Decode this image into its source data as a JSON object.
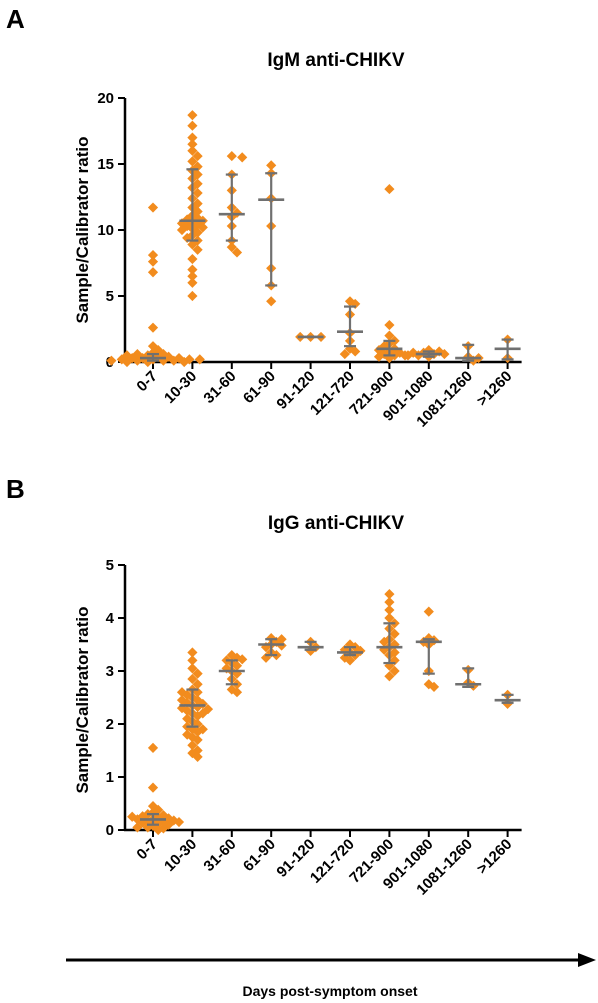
{
  "figure": {
    "x_axis_label": "Days post-symptom onset"
  },
  "chart_data": [
    {
      "panel": "A",
      "type": "scatter",
      "title": "IgM anti-CHIKV",
      "ylabel": "Sample/Calibrator ratio",
      "ylim": [
        0,
        20
      ],
      "yticks": [
        0,
        5,
        10,
        15,
        20
      ],
      "grid": false,
      "color": "#f28c1e",
      "categories": [
        "0-7",
        "10-30",
        "31-60",
        "61-90",
        "91-120",
        "121-720",
        "721-900",
        "901-1080",
        "1081-1260",
        ">1260"
      ],
      "groups": [
        {
          "median": 0.3,
          "q1": 0.1,
          "q3": 0.6,
          "points": [
            11.7,
            8.1,
            7.6,
            6.8,
            2.6,
            1.2,
            0.9,
            0.7,
            0.6,
            0.5,
            0.4,
            0.4,
            0.3,
            0.3,
            0.3,
            0.2,
            0.2,
            0.2,
            0.1,
            0.1,
            0.1,
            0.1,
            0.0,
            0.0,
            0.6,
            0.5,
            0.2,
            0.0
          ]
        },
        {
          "median": 10.7,
          "q1": 9.2,
          "q3": 14.6,
          "points": [
            18.7,
            17.9,
            17.0,
            16.5,
            16.0,
            15.6,
            15.2,
            14.8,
            14.5,
            14.2,
            13.9,
            13.5,
            13.2,
            12.8,
            12.4,
            12.0,
            11.7,
            11.4,
            11.1,
            10.9,
            10.8,
            10.7,
            10.6,
            10.5,
            10.4,
            10.3,
            10.2,
            10.1,
            10.0,
            9.8,
            9.6,
            9.4,
            9.2,
            8.9,
            8.5,
            7.8,
            7.0,
            6.5,
            6.0,
            5.0
          ]
        },
        {
          "median": 11.2,
          "q1": 9.2,
          "q3": 14.2,
          "points": [
            15.6,
            15.5,
            14.2,
            13.0,
            11.7,
            11.3,
            11.0,
            10.3,
            9.2,
            8.7,
            8.3
          ]
        },
        {
          "median": 12.3,
          "q1": 5.8,
          "q3": 14.3,
          "points": [
            14.9,
            14.3,
            12.4,
            10.3,
            7.1,
            5.8,
            4.6
          ]
        },
        {
          "median": 1.9,
          "q1": 1.9,
          "q3": 1.9,
          "points": [
            1.9,
            1.9,
            1.9
          ]
        },
        {
          "median": 2.3,
          "q1": 1.2,
          "q3": 4.2,
          "points": [
            4.6,
            4.4,
            3.6,
            2.2,
            1.6,
            1.0,
            0.8,
            0.6
          ]
        },
        {
          "median": 1.0,
          "q1": 0.5,
          "q3": 1.6,
          "points": [
            13.1,
            2.8,
            2.0,
            1.6,
            1.4,
            1.2,
            1.0,
            0.9,
            0.8,
            0.7,
            0.6,
            0.5,
            0.5,
            0.4,
            0.3
          ]
        },
        {
          "median": 0.6,
          "q1": 0.4,
          "q3": 0.8,
          "points": [
            0.9,
            0.8,
            0.7,
            0.7,
            0.6,
            0.6,
            0.5,
            0.5,
            0.4
          ]
        },
        {
          "median": 0.3,
          "q1": 0.1,
          "q3": 1.3,
          "points": [
            1.2,
            0.4,
            0.3,
            0.1
          ]
        },
        {
          "median": 1.0,
          "q1": 0.2,
          "q3": 1.7,
          "points": [
            1.7,
            0.3
          ]
        }
      ]
    },
    {
      "panel": "B",
      "type": "scatter",
      "title": "IgG anti-CHIKV",
      "ylabel": "Sample/Calibrator ratio",
      "ylim": [
        0,
        5
      ],
      "yticks": [
        0,
        1,
        2,
        3,
        4,
        5
      ],
      "grid": false,
      "color": "#f28c1e",
      "categories": [
        "0-7",
        "10-30",
        "31-60",
        "61-90",
        "91-120",
        "121-720",
        "721-900",
        "901-1080",
        "1081-1260",
        ">1260"
      ],
      "groups": [
        {
          "median": 0.2,
          "q1": 0.1,
          "q3": 0.3,
          "points": [
            1.55,
            0.8,
            0.45,
            0.38,
            0.33,
            0.3,
            0.28,
            0.26,
            0.24,
            0.22,
            0.2,
            0.2,
            0.18,
            0.17,
            0.15,
            0.14,
            0.12,
            0.1,
            0.08,
            0.05,
            0.03,
            0.0,
            0.25,
            0.15,
            0.05
          ]
        },
        {
          "median": 2.35,
          "q1": 1.95,
          "q3": 2.65,
          "points": [
            3.35,
            3.2,
            3.05,
            2.95,
            2.85,
            2.75,
            2.65,
            2.6,
            2.55,
            2.5,
            2.45,
            2.4,
            2.38,
            2.35,
            2.32,
            2.3,
            2.28,
            2.25,
            2.2,
            2.15,
            2.1,
            2.05,
            2.0,
            1.95,
            1.9,
            1.85,
            1.8,
            1.75,
            1.7,
            1.6,
            1.5,
            1.45,
            1.38,
            2.6,
            2.45,
            2.2,
            1.9
          ]
        },
        {
          "median": 3.0,
          "q1": 2.75,
          "q3": 3.2,
          "points": [
            3.3,
            3.25,
            3.2,
            3.15,
            3.1,
            3.05,
            3.0,
            2.95,
            2.85,
            2.75,
            2.65,
            2.6,
            3.22
          ]
        },
        {
          "median": 3.5,
          "q1": 3.3,
          "q3": 3.6,
          "points": [
            3.62,
            3.6,
            3.55,
            3.5,
            3.48,
            3.45,
            3.35,
            3.3,
            3.25
          ]
        },
        {
          "median": 3.45,
          "q1": 3.4,
          "q3": 3.55,
          "points": [
            3.55,
            3.45,
            3.38
          ]
        },
        {
          "median": 3.35,
          "q1": 3.3,
          "q3": 3.45,
          "points": [
            3.5,
            3.45,
            3.4,
            3.38,
            3.35,
            3.3,
            3.25,
            3.2
          ]
        },
        {
          "median": 3.45,
          "q1": 3.15,
          "q3": 3.9,
          "points": [
            4.45,
            4.3,
            4.15,
            4.0,
            3.9,
            3.8,
            3.7,
            3.6,
            3.5,
            3.45,
            3.4,
            3.3,
            3.2,
            3.1,
            3.0,
            2.9,
            3.55,
            3.35
          ]
        },
        {
          "median": 3.55,
          "q1": 2.95,
          "q3": 3.6,
          "points": [
            4.12,
            3.62,
            3.58,
            3.55,
            3.5,
            3.0,
            2.75,
            2.7
          ]
        },
        {
          "median": 2.75,
          "q1": 2.7,
          "q3": 3.05,
          "points": [
            3.02,
            2.78,
            2.72
          ]
        },
        {
          "median": 2.45,
          "q1": 2.4,
          "q3": 2.55,
          "points": [
            2.55,
            2.38
          ]
        }
      ]
    }
  ]
}
